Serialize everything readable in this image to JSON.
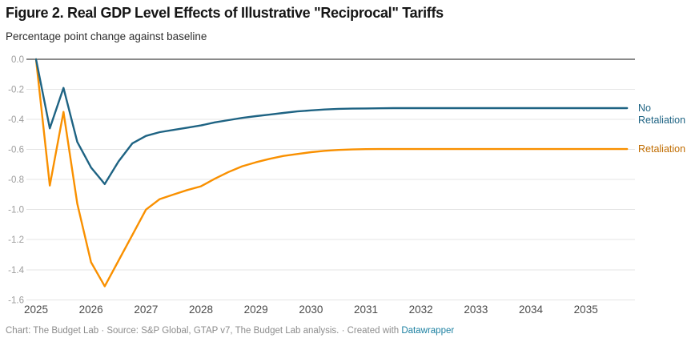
{
  "chart_data": {
    "type": "line",
    "title": "Figure 2. Real GDP Level Effects of Illustrative \"Reciprocal\" Tariffs",
    "subtitle": "Percentage point change against baseline",
    "xlabel": "",
    "ylabel": "Percentage point change against baseline",
    "ylim": [
      -1.6,
      0.0
    ],
    "xlim": [
      2025,
      2035.75
    ],
    "grid": true,
    "legend_position": "right-line-labels",
    "x_unit": "year-quarterly",
    "x": [
      2025.0,
      2025.25,
      2025.5,
      2025.75,
      2026.0,
      2026.25,
      2026.5,
      2026.75,
      2027.0,
      2027.25,
      2027.5,
      2027.75,
      2028.0,
      2028.25,
      2028.5,
      2028.75,
      2029.0,
      2029.25,
      2029.5,
      2029.75,
      2030.0,
      2030.25,
      2030.5,
      2030.75,
      2031.0,
      2031.25,
      2031.5,
      2031.75,
      2032.0,
      2032.25,
      2032.5,
      2032.75,
      2033.0,
      2033.25,
      2033.5,
      2033.75,
      2034.0,
      2034.25,
      2034.5,
      2034.75,
      2035.0,
      2035.25,
      2035.5,
      2035.75
    ],
    "series": [
      {
        "id": "retaliation",
        "name": "Retaliation",
        "label_lines": [
          "Retaliation"
        ],
        "color": "#f99000",
        "label_color": "#c06c00",
        "values": [
          0.0,
          -0.84,
          -0.35,
          -0.96,
          -1.35,
          -1.51,
          -1.34,
          -1.17,
          -1.0,
          -0.93,
          -0.9,
          -0.87,
          -0.845,
          -0.795,
          -0.75,
          -0.712,
          -0.685,
          -0.662,
          -0.643,
          -0.63,
          -0.618,
          -0.609,
          -0.603,
          -0.6,
          -0.598,
          -0.597,
          -0.597,
          -0.597,
          -0.597,
          -0.597,
          -0.597,
          -0.597,
          -0.597,
          -0.597,
          -0.597,
          -0.597,
          -0.597,
          -0.597,
          -0.597,
          -0.597,
          -0.597,
          -0.597,
          -0.597,
          -0.597
        ]
      },
      {
        "id": "no-retaliation",
        "name": "No Retaliation",
        "label_lines": [
          "No",
          "Retaliation"
        ],
        "color": "#1e6383",
        "label_color": "#1e6383",
        "values": [
          0.0,
          -0.46,
          -0.19,
          -0.55,
          -0.72,
          -0.83,
          -0.68,
          -0.56,
          -0.51,
          -0.485,
          -0.47,
          -0.455,
          -0.44,
          -0.42,
          -0.405,
          -0.39,
          -0.378,
          -0.368,
          -0.357,
          -0.347,
          -0.34,
          -0.334,
          -0.33,
          -0.328,
          -0.327,
          -0.326,
          -0.325,
          -0.325,
          -0.325,
          -0.325,
          -0.325,
          -0.325,
          -0.325,
          -0.325,
          -0.325,
          -0.325,
          -0.325,
          -0.325,
          -0.325,
          -0.325,
          -0.325,
          -0.325,
          -0.325,
          -0.325
        ]
      }
    ],
    "y_ticks": [
      {
        "v": 0.0,
        "label": "0.0"
      },
      {
        "v": -0.2,
        "label": "-0.2"
      },
      {
        "v": -0.4,
        "label": "-0.4"
      },
      {
        "v": -0.6,
        "label": "-0.6"
      },
      {
        "v": -0.8,
        "label": "-0.8"
      },
      {
        "v": -1.0,
        "label": "-1.0"
      },
      {
        "v": -1.2,
        "label": "-1.2"
      },
      {
        "v": -1.4,
        "label": "-1.4"
      },
      {
        "v": -1.6,
        "label": "-1.6"
      }
    ],
    "x_ticks": [
      {
        "v": 2025,
        "label": "2025"
      },
      {
        "v": 2026,
        "label": "2026"
      },
      {
        "v": 2027,
        "label": "2027"
      },
      {
        "v": 2028,
        "label": "2028"
      },
      {
        "v": 2029,
        "label": "2029"
      },
      {
        "v": 2030,
        "label": "2030"
      },
      {
        "v": 2031,
        "label": "2031"
      },
      {
        "v": 2032,
        "label": "2032"
      },
      {
        "v": 2033,
        "label": "2033"
      },
      {
        "v": 2034,
        "label": "2034"
      },
      {
        "v": 2035,
        "label": "2035"
      }
    ],
    "colors": {
      "zero_baseline": "#141414",
      "gridline": "#e4e4e4",
      "y_tick_text": "#9c9c9c",
      "x_tick_text": "#4b4b4b"
    }
  },
  "footer": {
    "credit": "Chart: The Budget Lab · Source: S&P Global, GTAP v7, The Budget Lab analysis. · Created with ",
    "link_label": "Datawrapper"
  }
}
